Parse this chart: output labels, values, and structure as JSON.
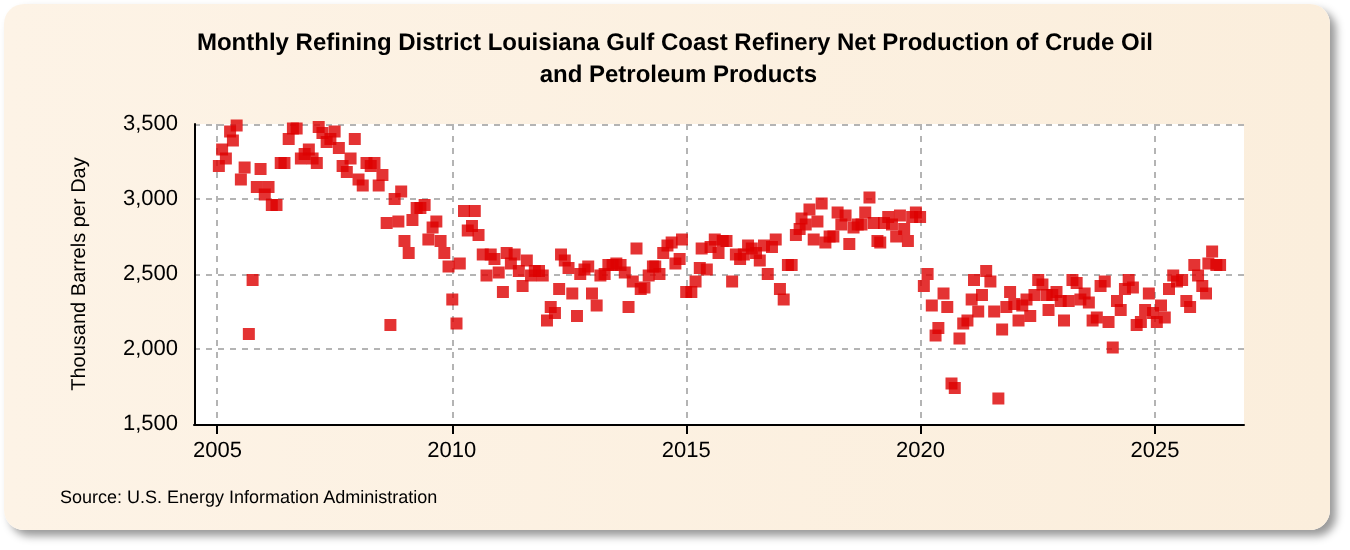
{
  "chart_data": {
    "type": "scatter",
    "title": "Monthly Refining District Louisiana Gulf Coast Refinery Net Production of Crude Oil and Petroleum Products",
    "ylabel": "Thousand Barrels per Day",
    "annotations": [
      "Source: U.S. Energy Information Administration"
    ],
    "x": [
      2005.03,
      2005.1,
      2005.18,
      2005.27,
      2005.33,
      2005.41,
      2005.5,
      2005.58,
      2005.67,
      2005.75,
      2005.84,
      2005.92,
      2006.01,
      2006.09,
      2006.16,
      2006.26,
      2006.35,
      2006.43,
      2006.52,
      2006.61,
      2006.69,
      2006.78,
      2006.86,
      2006.95,
      2007.03,
      2007.12,
      2007.16,
      2007.24,
      2007.33,
      2007.41,
      2007.5,
      2007.59,
      2007.67,
      2007.76,
      2007.84,
      2007.93,
      2008.01,
      2008.1,
      2008.18,
      2008.27,
      2008.35,
      2008.44,
      2008.52,
      2008.61,
      2008.69,
      2008.78,
      2008.86,
      2008.92,
      2008.99,
      2009.08,
      2009.16,
      2009.25,
      2009.33,
      2009.42,
      2009.5,
      2009.59,
      2009.67,
      2009.76,
      2009.84,
      2009.93,
      2010.01,
      2010.1,
      2010.17,
      2010.26,
      2010.34,
      2010.43,
      2010.49,
      2010.57,
      2010.66,
      2010.74,
      2010.83,
      2010.91,
      2011.0,
      2011.09,
      2011.17,
      2011.26,
      2011.34,
      2011.43,
      2011.51,
      2011.6,
      2011.69,
      2011.77,
      2011.86,
      2011.94,
      2012.03,
      2012.11,
      2012.2,
      2012.29,
      2012.33,
      2012.41,
      2012.49,
      2012.57,
      2012.67,
      2012.74,
      2012.83,
      2012.91,
      2012.99,
      2013.09,
      2013.17,
      2013.26,
      2013.34,
      2013.43,
      2013.51,
      2013.6,
      2013.69,
      2013.77,
      2013.86,
      2013.94,
      2014.03,
      2014.11,
      2014.2,
      2014.29,
      2014.34,
      2014.43,
      2014.51,
      2014.6,
      2014.69,
      2014.77,
      2014.86,
      2014.91,
      2015.0,
      2015.11,
      2015.2,
      2015.29,
      2015.33,
      2015.44,
      2015.52,
      2015.61,
      2015.69,
      2015.78,
      2015.86,
      2015.98,
      2016.06,
      2016.15,
      2016.23,
      2016.32,
      2016.4,
      2016.49,
      2016.57,
      2016.66,
      2016.74,
      2016.83,
      2016.91,
      2017.0,
      2017.08,
      2017.17,
      2017.25,
      2017.34,
      2017.42,
      2017.46,
      2017.55,
      2017.63,
      2017.72,
      2017.8,
      2017.89,
      2017.97,
      2018.06,
      2018.14,
      2018.23,
      2018.31,
      2018.4,
      2018.48,
      2018.57,
      2018.66,
      2018.74,
      2018.82,
      2018.91,
      2019.0,
      2019.08,
      2019.14,
      2019.22,
      2019.31,
      2019.39,
      2019.48,
      2019.56,
      2019.65,
      2019.73,
      2019.82,
      2019.9,
      2019.99,
      2020.07,
      2020.15,
      2020.24,
      2020.32,
      2020.38,
      2020.49,
      2020.57,
      2020.66,
      2020.73,
      2020.83,
      2020.91,
      2021.0,
      2021.09,
      2021.14,
      2021.23,
      2021.31,
      2021.4,
      2021.49,
      2021.57,
      2021.66,
      2021.74,
      2021.83,
      2021.91,
      2022.0,
      2022.09,
      2022.17,
      2022.26,
      2022.34,
      2022.43,
      2022.51,
      2022.6,
      2022.69,
      2022.73,
      2022.81,
      2022.9,
      2022.99,
      2023.06,
      2023.16,
      2023.24,
      2023.33,
      2023.41,
      2023.5,
      2023.59,
      2023.67,
      2023.76,
      2023.84,
      2023.93,
      2024.01,
      2024.1,
      2024.19,
      2024.27,
      2024.36,
      2024.44,
      2024.53,
      2024.61,
      2024.7,
      2024.79,
      2024.87,
      2024.96,
      2025.04,
      2025.13,
      2025.21,
      2025.3,
      2025.39,
      2025.47,
      2025.58,
      2025.67,
      2025.75,
      2025.84,
      2025.92,
      2026.01,
      2026.09,
      2026.14,
      2026.22,
      2026.31,
      2026.39
    ],
    "values": [
      3220,
      3330,
      3270,
      3450,
      3390,
      3490,
      3130,
      3210,
      2100,
      2460,
      3080,
      3200,
      3030,
      3080,
      2960,
      2960,
      3240,
      3240,
      3400,
      3470,
      3470,
      3270,
      3300,
      3330,
      3270,
      3240,
      3480,
      3440,
      3380,
      3400,
      3450,
      3340,
      3220,
      3180,
      3270,
      3400,
      3130,
      3090,
      3240,
      3220,
      3240,
      3090,
      3160,
      2840,
      2160,
      3000,
      2850,
      3050,
      2720,
      2640,
      2860,
      2940,
      2940,
      2960,
      2730,
      2810,
      2850,
      2720,
      2640,
      2550,
      2330,
      2170,
      2570,
      2920,
      2790,
      2820,
      2920,
      2760,
      2630,
      2490,
      2630,
      2600,
      2510,
      2380,
      2640,
      2570,
      2630,
      2520,
      2420,
      2590,
      2490,
      2520,
      2520,
      2490,
      2190,
      2280,
      2240,
      2400,
      2630,
      2590,
      2540,
      2370,
      2220,
      2500,
      2530,
      2550,
      2370,
      2290,
      2490,
      2500,
      2560,
      2560,
      2570,
      2560,
      2510,
      2280,
      2450,
      2670,
      2400,
      2410,
      2490,
      2550,
      2550,
      2500,
      2640,
      2690,
      2710,
      2570,
      2600,
      2730,
      2380,
      2380,
      2450,
      2540,
      2670,
      2530,
      2680,
      2730,
      2640,
      2720,
      2720,
      2450,
      2630,
      2600,
      2630,
      2690,
      2670,
      2640,
      2590,
      2690,
      2500,
      2680,
      2730,
      2400,
      2330,
      2560,
      2560,
      2760,
      2800,
      2870,
      2830,
      2930,
      2730,
      2850,
      2970,
      2710,
      2750,
      2750,
      2910,
      2830,
      2890,
      2700,
      2810,
      2830,
      2830,
      2910,
      3010,
      2840,
      2720,
      2710,
      2840,
      2880,
      2830,
      2750,
      2890,
      2800,
      2720,
      2880,
      2910,
      2880,
      2420,
      2500,
      2290,
      2090,
      2140,
      2370,
      2280,
      1770,
      1740,
      2070,
      2170,
      2190,
      2330,
      2460,
      2250,
      2360,
      2520,
      2450,
      2250,
      1670,
      2130,
      2280,
      2380,
      2300,
      2190,
      2290,
      2330,
      2220,
      2360,
      2460,
      2430,
      2360,
      2260,
      2360,
      2380,
      2320,
      2190,
      2320,
      2460,
      2440,
      2330,
      2370,
      2310,
      2190,
      2210,
      2420,
      2450,
      2180,
      2010,
      2320,
      2260,
      2400,
      2460,
      2410,
      2160,
      2180,
      2260,
      2370,
      2240,
      2180,
      2290,
      2210,
      2400,
      2490,
      2450,
      2460,
      2320,
      2280,
      2560,
      2490,
      2420,
      2370,
      2570,
      2650,
      2560,
      2560
    ],
    "color": "#dd0000",
    "marker": "square",
    "xlim": [
      2004.5,
      2026.9
    ],
    "xticks": [
      2005,
      2010,
      2015,
      2020,
      2025
    ],
    "ylim": [
      1500,
      3500
    ],
    "yticks": [
      {
        "value": 1500,
        "label": "1,500"
      },
      {
        "value": 2000,
        "label": "2,000"
      },
      {
        "value": 2500,
        "label": "2,500"
      },
      {
        "value": 3000,
        "label": "3,000"
      },
      {
        "value": 3500,
        "label": "3,500"
      }
    ],
    "grid": true
  }
}
